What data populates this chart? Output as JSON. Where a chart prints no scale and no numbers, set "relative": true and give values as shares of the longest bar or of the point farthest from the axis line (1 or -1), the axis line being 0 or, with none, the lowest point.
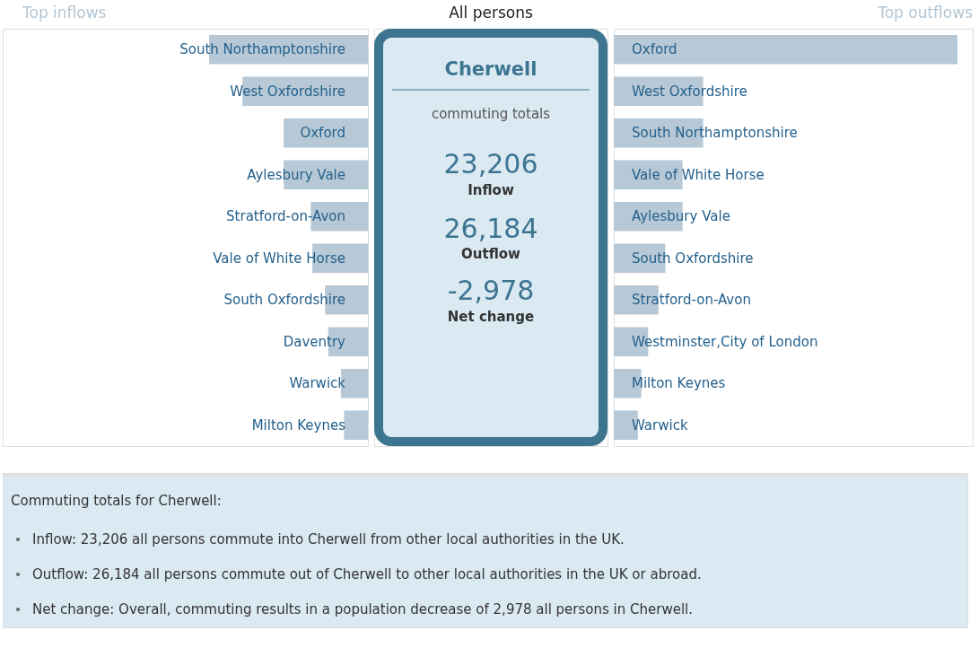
{
  "chart_data": [
    {
      "type": "bar",
      "orientation": "horizontal",
      "relative": true,
      "title": "Top inflows",
      "color": "#b7c9d6",
      "categories": [
        "South Northamptonshire",
        "West Oxfordshire",
        "Oxford",
        "Aylesbury Vale",
        "Stratford-on-Avon",
        "Vale of White Horse",
        "South Oxfordshire",
        "Daventry",
        "Warwick",
        "Milton Keynes"
      ],
      "values": [
        1,
        0.79,
        0.53,
        0.53,
        0.36,
        0.35,
        0.27,
        0.25,
        0.17,
        0.15
      ]
    },
    {
      "type": "other",
      "title": "All persons",
      "annotations": [
        "Cherwell",
        "commuting totals",
        "23,206",
        "Inflow",
        "26,184",
        "Outflow",
        "-2,978",
        "Net change"
      ]
    },
    {
      "type": "bar",
      "orientation": "horizontal",
      "relative": true,
      "title": "Top outflows",
      "color": "#b7c9d6",
      "categories": [
        "Oxford",
        "West Oxfordshire",
        "South Northamptonshire",
        "Vale of White Horse",
        "Aylesbury Vale",
        "South Oxfordshire",
        "Stratford-on-Avon",
        "Westminster,City of London",
        "Milton Keynes",
        "Warwick"
      ],
      "values": [
        1,
        0.26,
        0.26,
        0.2,
        0.2,
        0.15,
        0.13,
        0.1,
        0.08,
        0.07
      ]
    },
    {
      "type": "other",
      "title": "Commuting totals for Cherwell:",
      "annotations": [
        "Inflow: 23,206 all persons commute into Cherwell from other local authorities in the UK.",
        "Outflow: 26,184 all persons commute out of Cherwell to other local authorities in the UK or abroad.",
        "Net change: Overall, commuting results in a population decrease of 2,978 all persons in Cherwell."
      ]
    }
  ]
}
